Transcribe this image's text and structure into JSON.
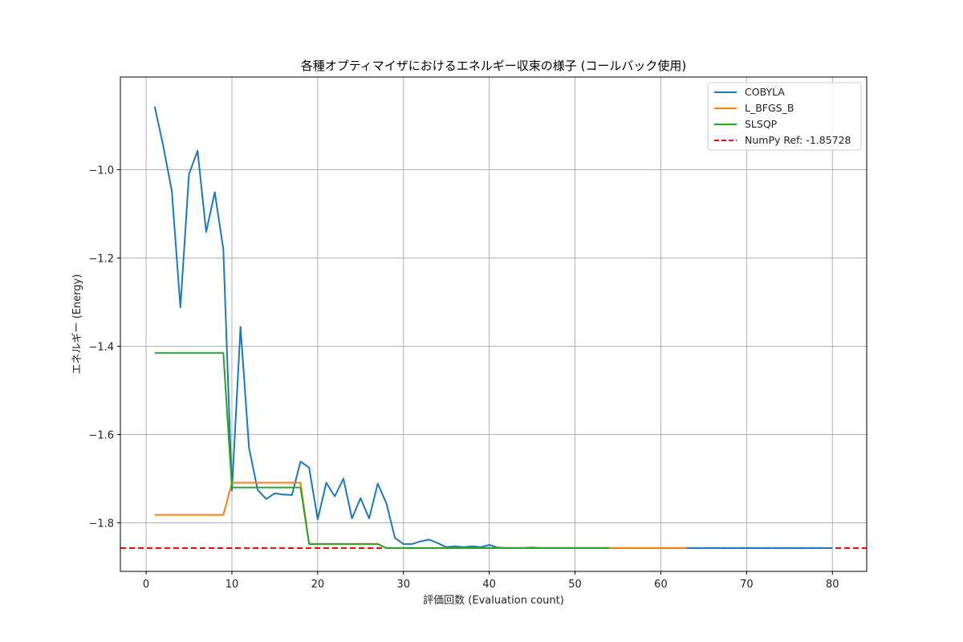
{
  "chart_data": {
    "type": "line",
    "title": "各種オプティマイザにおけるエネルギー収束の様子 (コールバック使用)",
    "xlabel": "評価回数 (Evaluation count)",
    "ylabel": "エネルギー (Energy)",
    "xlim": [
      -3,
      84
    ],
    "ylim": [
      -1.91,
      -0.79
    ],
    "xticks": [
      0,
      10,
      20,
      30,
      40,
      50,
      60,
      70,
      80
    ],
    "yticks": [
      -1.8,
      -1.6,
      -1.4,
      -1.2,
      -1.0
    ],
    "ytick_labels": [
      "−1.8",
      "−1.6",
      "−1.4",
      "−1.2",
      "−1.0"
    ],
    "grid": true,
    "legend_position": "top-right",
    "series": [
      {
        "name": "COBYLA",
        "color": "#1f77b4",
        "x": [
          1,
          2,
          3,
          4,
          5,
          6,
          7,
          8,
          9,
          10,
          11,
          12,
          13,
          14,
          15,
          16,
          17,
          18,
          19,
          20,
          21,
          22,
          23,
          24,
          25,
          26,
          27,
          28,
          29,
          30,
          31,
          32,
          33,
          34,
          35,
          36,
          37,
          38,
          39,
          40,
          41,
          42,
          43,
          44,
          45,
          46,
          47,
          48,
          49,
          50,
          55,
          60,
          65,
          70,
          75,
          80
        ],
        "y": [
          -0.857,
          -0.946,
          -1.048,
          -1.312,
          -1.01,
          -0.957,
          -1.141,
          -1.051,
          -1.18,
          -1.727,
          -1.356,
          -1.63,
          -1.725,
          -1.746,
          -1.733,
          -1.736,
          -1.737,
          -1.661,
          -1.675,
          -1.792,
          -1.709,
          -1.74,
          -1.7,
          -1.79,
          -1.744,
          -1.79,
          -1.711,
          -1.755,
          -1.834,
          -1.848,
          -1.848,
          -1.842,
          -1.838,
          -1.846,
          -1.855,
          -1.853,
          -1.855,
          -1.853,
          -1.855,
          -1.85,
          -1.856,
          -1.857,
          -1.857,
          -1.857,
          -1.856,
          -1.857,
          -1.857,
          -1.857,
          -1.857,
          -1.857,
          -1.857,
          -1.857,
          -1.857,
          -1.857,
          -1.857,
          -1.857
        ]
      },
      {
        "name": "L_BFGS_B",
        "color": "#ff7f0e",
        "x": [
          1,
          9,
          10,
          18,
          19,
          27,
          28,
          36,
          37,
          63
        ],
        "y": [
          -1.782,
          -1.782,
          -1.709,
          -1.709,
          -1.848,
          -1.848,
          -1.857,
          -1.857,
          -1.857,
          -1.857
        ]
      },
      {
        "name": "SLSQP",
        "color": "#2ca02c",
        "x": [
          1,
          9,
          10,
          18,
          19,
          27,
          28,
          36,
          37,
          54
        ],
        "y": [
          -1.415,
          -1.415,
          -1.72,
          -1.72,
          -1.848,
          -1.848,
          -1.857,
          -1.857,
          -1.857,
          -1.857
        ]
      }
    ],
    "reference": {
      "name": "NumPy Ref: -1.85728",
      "value": -1.85728,
      "color": "#ff0000",
      "style": "dashed"
    }
  }
}
